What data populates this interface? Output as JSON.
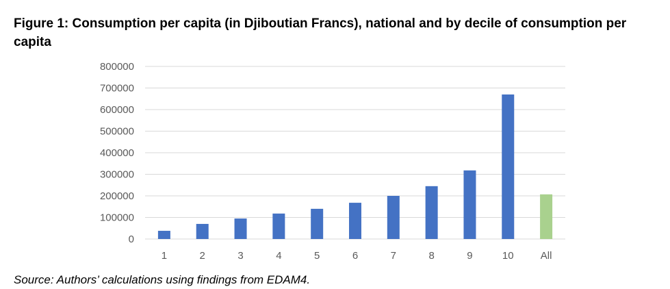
{
  "figure": {
    "title": "Figure 1: Consumption per capita (in Djiboutian Francs), national and by decile of consumption per capita",
    "source": "Source: Authors’ calculations using findings from EDAM4."
  },
  "chart_data": {
    "type": "bar",
    "title": "Figure 1: Consumption per capita (in Djiboutian Francs), national and by decile of consumption per capita",
    "xlabel": "",
    "ylabel": "",
    "categories": [
      "1",
      "2",
      "3",
      "4",
      "5",
      "6",
      "7",
      "8",
      "9",
      "10",
      "All"
    ],
    "values": [
      38000,
      70000,
      95000,
      118000,
      140000,
      168000,
      200000,
      245000,
      318000,
      670000,
      207000
    ],
    "ylim": [
      0,
      800000
    ],
    "yticks": [
      "0",
      "100000",
      "200000",
      "300000",
      "400000",
      "500000",
      "600000",
      "700000",
      "800000"
    ],
    "grid": true,
    "legend": "none",
    "colors": {
      "decile": "#4472c4",
      "national": "#a9d18e",
      "gridline": "#d9d9d9",
      "tick_text": "#595959"
    },
    "highlight_category": "All"
  }
}
